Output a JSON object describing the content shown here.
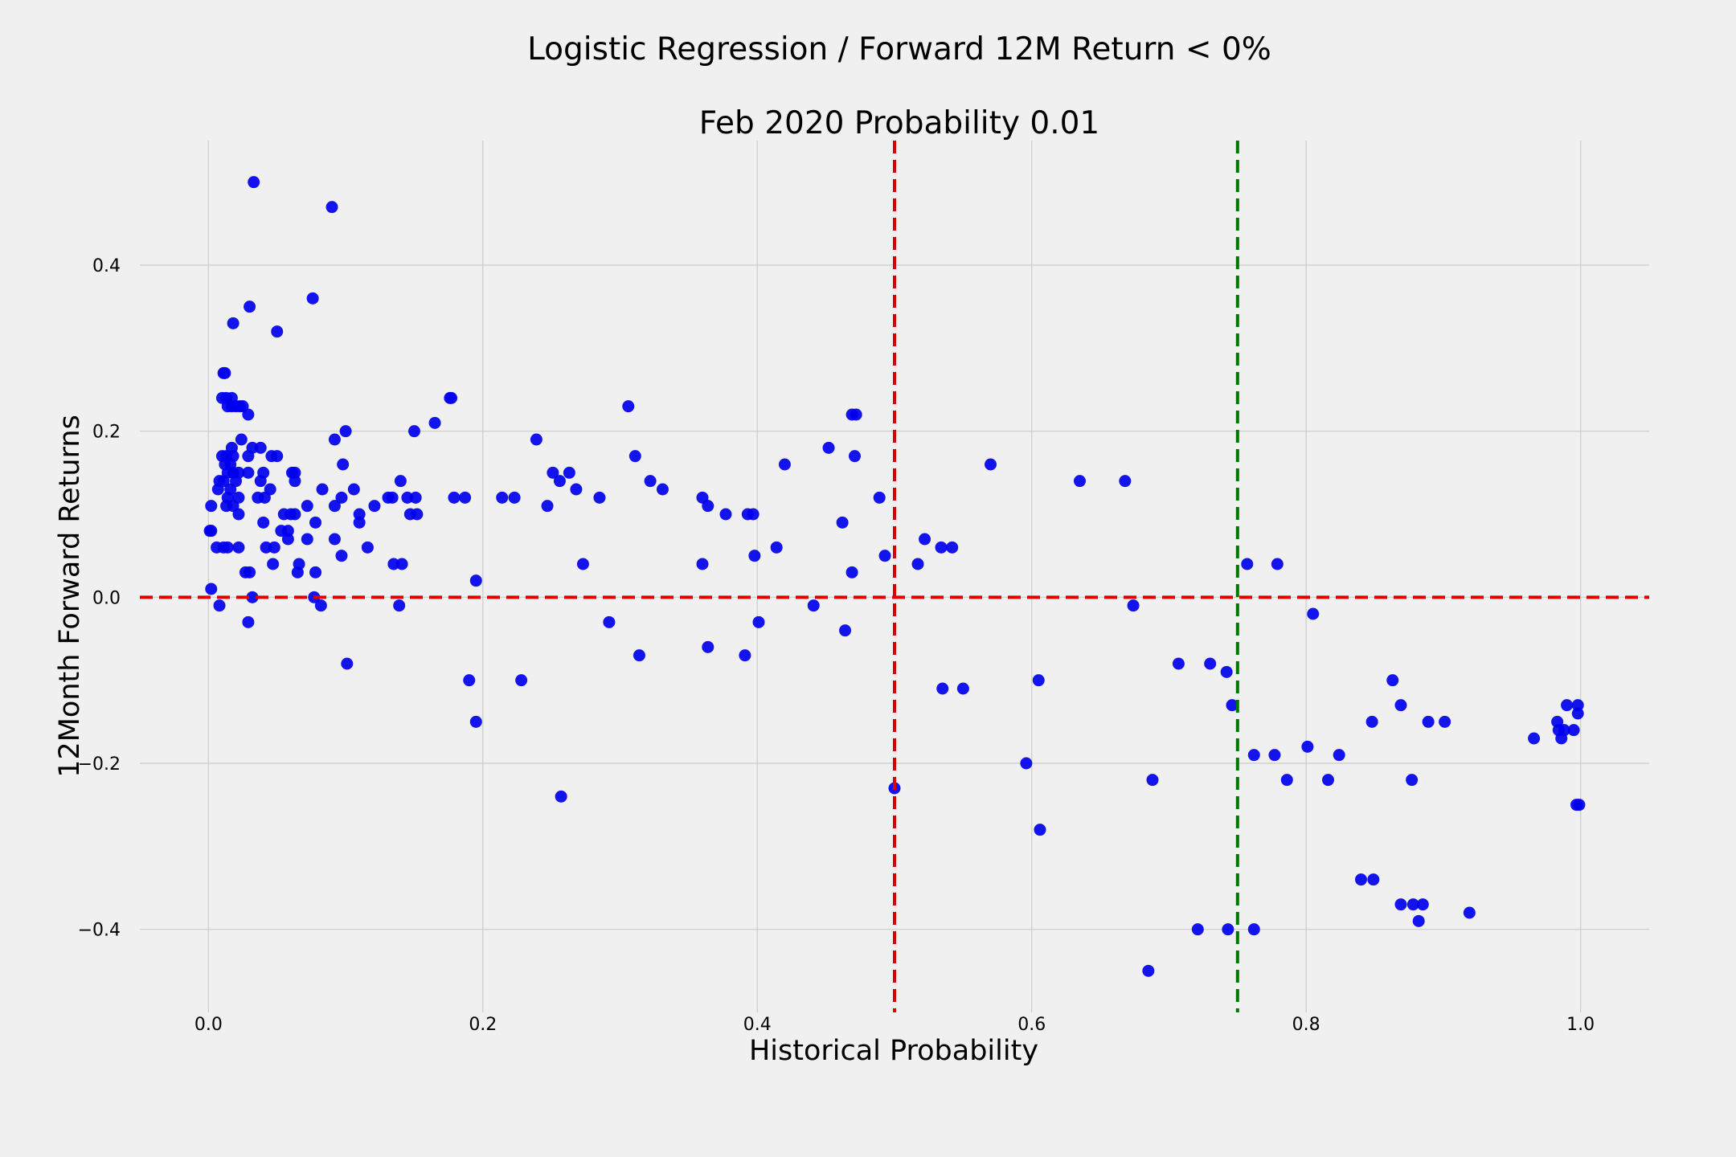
{
  "chart_data": {
    "type": "scatter",
    "title": "Logistic Regression / Forward 12M Return < 0%",
    "subtitle": "Feb 2020 Probability 0.01",
    "xlabel": "Historical Probability",
    "ylabel": "12Month Forward Returns",
    "xlim": [
      -0.05,
      1.05
    ],
    "ylim": [
      -0.5,
      0.55
    ],
    "grid": true,
    "point_color": "#0000ee",
    "xticks": [
      0.0,
      0.2,
      0.4,
      0.6,
      0.8,
      1.0
    ],
    "xtick_labels": [
      "0.0",
      "0.2",
      "0.4",
      "0.6",
      "0.8",
      "1.0"
    ],
    "yticks": [
      -0.4,
      -0.2,
      0.0,
      0.2,
      0.4
    ],
    "ytick_labels": [
      "−0.4",
      "−0.2",
      "0.0",
      "0.2",
      "0.4"
    ],
    "reference_lines": [
      {
        "orientation": "horizontal",
        "value": 0.0,
        "color": "#dd0000",
        "style": "dashed"
      },
      {
        "orientation": "vertical",
        "value": 0.5,
        "color": "#dd0000",
        "style": "dashed"
      },
      {
        "orientation": "vertical",
        "value": 0.75,
        "color": "#007700",
        "style": "dashed"
      }
    ],
    "points": [
      [
        0.033,
        0.5
      ],
      [
        0.09,
        0.47
      ],
      [
        0.076,
        0.36
      ],
      [
        0.03,
        0.35
      ],
      [
        0.018,
        0.33
      ],
      [
        0.05,
        0.32
      ],
      [
        0.011,
        0.27
      ],
      [
        0.012,
        0.27
      ],
      [
        0.01,
        0.24
      ],
      [
        0.013,
        0.24
      ],
      [
        0.017,
        0.24
      ],
      [
        0.176,
        0.24
      ],
      [
        0.177,
        0.24
      ],
      [
        0.014,
        0.23
      ],
      [
        0.017,
        0.23
      ],
      [
        0.02,
        0.23
      ],
      [
        0.023,
        0.23
      ],
      [
        0.025,
        0.23
      ],
      [
        0.306,
        0.23
      ],
      [
        0.029,
        0.22
      ],
      [
        0.469,
        0.22
      ],
      [
        0.472,
        0.22
      ],
      [
        0.165,
        0.21
      ],
      [
        0.1,
        0.2
      ],
      [
        0.15,
        0.2
      ],
      [
        0.092,
        0.19
      ],
      [
        0.024,
        0.19
      ],
      [
        0.239,
        0.19
      ],
      [
        0.017,
        0.18
      ],
      [
        0.032,
        0.18
      ],
      [
        0.038,
        0.18
      ],
      [
        0.452,
        0.18
      ],
      [
        0.01,
        0.17
      ],
      [
        0.013,
        0.17
      ],
      [
        0.018,
        0.17
      ],
      [
        0.029,
        0.17
      ],
      [
        0.046,
        0.17
      ],
      [
        0.05,
        0.17
      ],
      [
        0.311,
        0.17
      ],
      [
        0.471,
        0.17
      ],
      [
        0.012,
        0.16
      ],
      [
        0.016,
        0.16
      ],
      [
        0.098,
        0.16
      ],
      [
        0.42,
        0.16
      ],
      [
        0.57,
        0.16
      ],
      [
        0.014,
        0.15
      ],
      [
        0.018,
        0.15
      ],
      [
        0.022,
        0.15
      ],
      [
        0.029,
        0.15
      ],
      [
        0.04,
        0.15
      ],
      [
        0.061,
        0.15
      ],
      [
        0.063,
        0.15
      ],
      [
        0.251,
        0.15
      ],
      [
        0.263,
        0.15
      ],
      [
        0.008,
        0.14
      ],
      [
        0.011,
        0.14
      ],
      [
        0.02,
        0.14
      ],
      [
        0.038,
        0.14
      ],
      [
        0.063,
        0.14
      ],
      [
        0.14,
        0.14
      ],
      [
        0.256,
        0.14
      ],
      [
        0.322,
        0.14
      ],
      [
        0.635,
        0.14
      ],
      [
        0.668,
        0.14
      ],
      [
        0.007,
        0.13
      ],
      [
        0.016,
        0.13
      ],
      [
        0.045,
        0.13
      ],
      [
        0.083,
        0.13
      ],
      [
        0.106,
        0.13
      ],
      [
        0.268,
        0.13
      ],
      [
        0.331,
        0.13
      ],
      [
        0.014,
        0.12
      ],
      [
        0.022,
        0.12
      ],
      [
        0.036,
        0.12
      ],
      [
        0.041,
        0.12
      ],
      [
        0.097,
        0.12
      ],
      [
        0.131,
        0.12
      ],
      [
        0.134,
        0.12
      ],
      [
        0.145,
        0.12
      ],
      [
        0.151,
        0.12
      ],
      [
        0.179,
        0.12
      ],
      [
        0.187,
        0.12
      ],
      [
        0.214,
        0.12
      ],
      [
        0.223,
        0.12
      ],
      [
        0.285,
        0.12
      ],
      [
        0.36,
        0.12
      ],
      [
        0.489,
        0.12
      ],
      [
        0.002,
        0.11
      ],
      [
        0.013,
        0.11
      ],
      [
        0.018,
        0.11
      ],
      [
        0.072,
        0.11
      ],
      [
        0.092,
        0.11
      ],
      [
        0.121,
        0.11
      ],
      [
        0.247,
        0.11
      ],
      [
        0.364,
        0.11
      ],
      [
        0.022,
        0.1
      ],
      [
        0.055,
        0.1
      ],
      [
        0.06,
        0.1
      ],
      [
        0.063,
        0.1
      ],
      [
        0.11,
        0.1
      ],
      [
        0.147,
        0.1
      ],
      [
        0.152,
        0.1
      ],
      [
        0.377,
        0.1
      ],
      [
        0.393,
        0.1
      ],
      [
        0.397,
        0.1
      ],
      [
        0.04,
        0.09
      ],
      [
        0.078,
        0.09
      ],
      [
        0.11,
        0.09
      ],
      [
        0.462,
        0.09
      ],
      [
        0.001,
        0.08
      ],
      [
        0.002,
        0.08
      ],
      [
        0.053,
        0.08
      ],
      [
        0.058,
        0.08
      ],
      [
        0.058,
        0.07
      ],
      [
        0.072,
        0.07
      ],
      [
        0.092,
        0.07
      ],
      [
        0.522,
        0.07
      ],
      [
        0.006,
        0.06
      ],
      [
        0.011,
        0.06
      ],
      [
        0.014,
        0.06
      ],
      [
        0.022,
        0.06
      ],
      [
        0.042,
        0.06
      ],
      [
        0.048,
        0.06
      ],
      [
        0.116,
        0.06
      ],
      [
        0.414,
        0.06
      ],
      [
        0.534,
        0.06
      ],
      [
        0.542,
        0.06
      ],
      [
        0.097,
        0.05
      ],
      [
        0.398,
        0.05
      ],
      [
        0.493,
        0.05
      ],
      [
        0.047,
        0.04
      ],
      [
        0.066,
        0.04
      ],
      [
        0.135,
        0.04
      ],
      [
        0.141,
        0.04
      ],
      [
        0.273,
        0.04
      ],
      [
        0.36,
        0.04
      ],
      [
        0.517,
        0.04
      ],
      [
        0.757,
        0.04
      ],
      [
        0.779,
        0.04
      ],
      [
        0.027,
        0.03
      ],
      [
        0.03,
        0.03
      ],
      [
        0.065,
        0.03
      ],
      [
        0.078,
        0.03
      ],
      [
        0.469,
        0.03
      ],
      [
        0.195,
        0.02
      ],
      [
        0.002,
        0.01
      ],
      [
        0.032,
        0.0
      ],
      [
        0.077,
        0.0
      ],
      [
        0.008,
        -0.01
      ],
      [
        0.082,
        -0.01
      ],
      [
        0.139,
        -0.01
      ],
      [
        0.441,
        -0.01
      ],
      [
        0.674,
        -0.01
      ],
      [
        0.805,
        -0.02
      ],
      [
        0.029,
        -0.03
      ],
      [
        0.292,
        -0.03
      ],
      [
        0.401,
        -0.03
      ],
      [
        0.464,
        -0.04
      ],
      [
        0.364,
        -0.06
      ],
      [
        0.314,
        -0.07
      ],
      [
        0.391,
        -0.07
      ],
      [
        0.101,
        -0.08
      ],
      [
        0.707,
        -0.08
      ],
      [
        0.73,
        -0.08
      ],
      [
        0.742,
        -0.09
      ],
      [
        0.19,
        -0.1
      ],
      [
        0.228,
        -0.1
      ],
      [
        0.605,
        -0.1
      ],
      [
        0.863,
        -0.1
      ],
      [
        0.535,
        -0.11
      ],
      [
        0.55,
        -0.11
      ],
      [
        0.746,
        -0.13
      ],
      [
        0.869,
        -0.13
      ],
      [
        0.99,
        -0.13
      ],
      [
        0.998,
        -0.13
      ],
      [
        0.998,
        -0.14
      ],
      [
        0.195,
        -0.15
      ],
      [
        0.848,
        -0.15
      ],
      [
        0.889,
        -0.15
      ],
      [
        0.901,
        -0.15
      ],
      [
        0.983,
        -0.15
      ],
      [
        0.984,
        -0.16
      ],
      [
        0.988,
        -0.16
      ],
      [
        0.995,
        -0.16
      ],
      [
        0.966,
        -0.17
      ],
      [
        0.986,
        -0.17
      ],
      [
        0.801,
        -0.18
      ],
      [
        0.762,
        -0.19
      ],
      [
        0.777,
        -0.19
      ],
      [
        0.824,
        -0.19
      ],
      [
        0.596,
        -0.2
      ],
      [
        0.688,
        -0.22
      ],
      [
        0.786,
        -0.22
      ],
      [
        0.816,
        -0.22
      ],
      [
        0.877,
        -0.22
      ],
      [
        0.5,
        -0.23
      ],
      [
        0.257,
        -0.24
      ],
      [
        0.997,
        -0.25
      ],
      [
        0.999,
        -0.25
      ],
      [
        0.606,
        -0.28
      ],
      [
        0.84,
        -0.34
      ],
      [
        0.849,
        -0.34
      ],
      [
        0.869,
        -0.37
      ],
      [
        0.878,
        -0.37
      ],
      [
        0.885,
        -0.37
      ],
      [
        0.919,
        -0.38
      ],
      [
        0.882,
        -0.39
      ],
      [
        0.721,
        -0.4
      ],
      [
        0.743,
        -0.4
      ],
      [
        0.762,
        -0.4
      ],
      [
        0.685,
        -0.45
      ]
    ]
  }
}
